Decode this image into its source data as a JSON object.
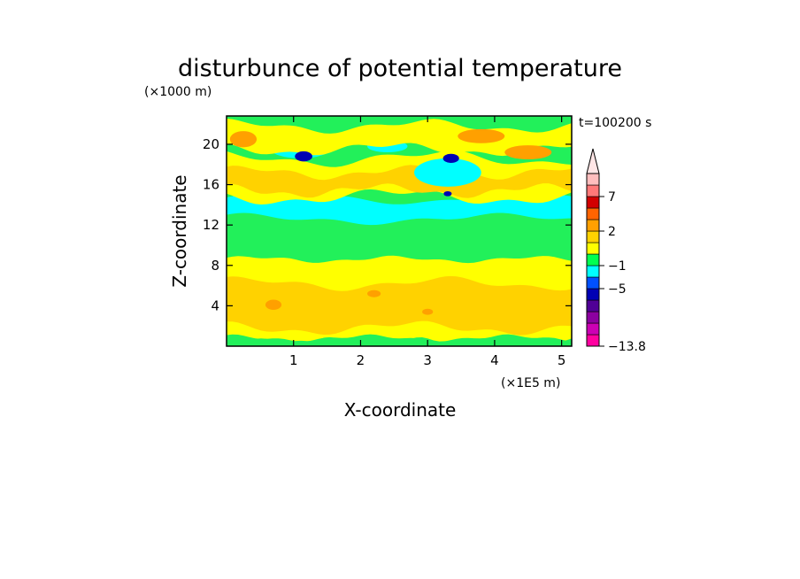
{
  "chart_data": {
    "type": "heatmap",
    "title": "disturbunce of potential temperature",
    "xlabel": "X-coordinate",
    "ylabel": "Z-coordinate",
    "x_unit": "(×1E5 m)",
    "y_unit": "(×1000 m)",
    "time_label": "t=100200 s",
    "xlim": [
      0,
      5.15
    ],
    "ylim": [
      0,
      22.8
    ],
    "x_ticks": [
      1,
      2,
      3,
      4,
      5
    ],
    "y_ticks": [
      4,
      8,
      12,
      16,
      20
    ],
    "colorbar": {
      "levels": [
        {
          "value": 7,
          "color": "#d20000"
        },
        {
          "value": 2,
          "color": "#ffd200"
        },
        {
          "value": -1,
          "color": "#00ffff"
        },
        {
          "value": -5,
          "color": "#0000b4"
        },
        {
          "value": -13.8,
          "color": "#ff00a0"
        }
      ],
      "bands": [
        "#ff00a0",
        "#cc00b4",
        "#8c00a0",
        "#500096",
        "#0000b4",
        "#0050ff",
        "#00ffff",
        "#00ff50",
        "#ffff00",
        "#ffd200",
        "#ffa000",
        "#ff6400",
        "#d20000",
        "#ff7878",
        "#ffbebe"
      ],
      "extend_top": true
    },
    "colors": {
      "green": "#22f05a",
      "cyan": "#00ffff",
      "yellow": "#ffff00",
      "gold": "#ffd200",
      "orange": "#ffa000",
      "blue": "#0000b4",
      "deepblue": "#0050ff"
    }
  }
}
